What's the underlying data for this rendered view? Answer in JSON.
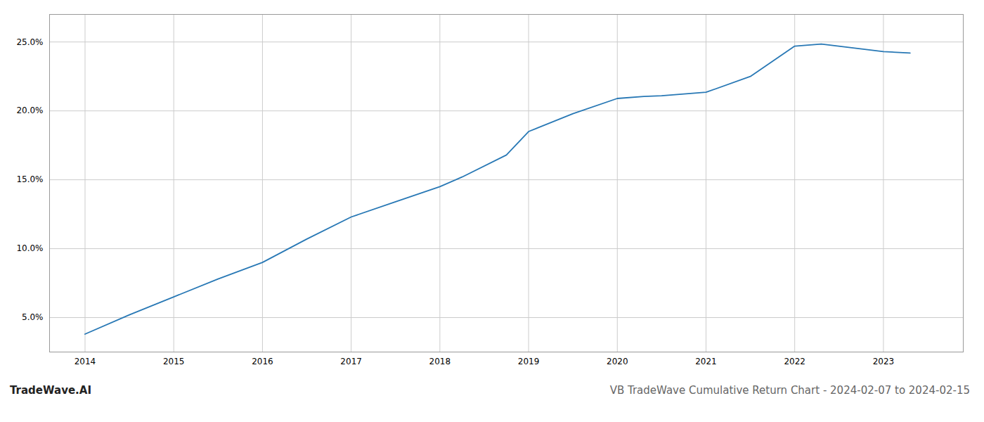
{
  "chart_data": {
    "type": "line",
    "title": "VB TradeWave Cumulative Return Chart - 2024-02-07 to 2024-02-15",
    "annotations": [
      "TradeWave.AI"
    ],
    "x": [
      2014,
      2014.5,
      2015,
      2015.5,
      2016,
      2016.5,
      2017,
      2017.5,
      2018,
      2018.25,
      2018.75,
      2019,
      2019.5,
      2020,
      2020.3,
      2020.5,
      2021,
      2021.5,
      2022,
      2022.3,
      2023,
      2023.3
    ],
    "values": [
      3.8,
      5.2,
      6.5,
      7.8,
      9.0,
      10.7,
      12.3,
      13.4,
      14.5,
      15.2,
      16.8,
      18.5,
      19.8,
      20.9,
      21.05,
      21.1,
      21.35,
      22.5,
      24.7,
      24.85,
      24.3,
      24.2
    ],
    "color": "#2878b5",
    "xlim": [
      2013.6,
      2023.9
    ],
    "xticks": [
      2014,
      2015,
      2016,
      2017,
      2018,
      2019,
      2020,
      2021,
      2022,
      2023
    ],
    "ylim": [
      2.5,
      27.0
    ],
    "yticks": [
      {
        "value": 5.0,
        "label": "5.0%"
      },
      {
        "value": 10.0,
        "label": "10.0%"
      },
      {
        "value": 15.0,
        "label": "15.0%"
      },
      {
        "value": 20.0,
        "label": "20.0%"
      },
      {
        "value": 25.0,
        "label": "25.0%"
      }
    ],
    "grid": true
  }
}
